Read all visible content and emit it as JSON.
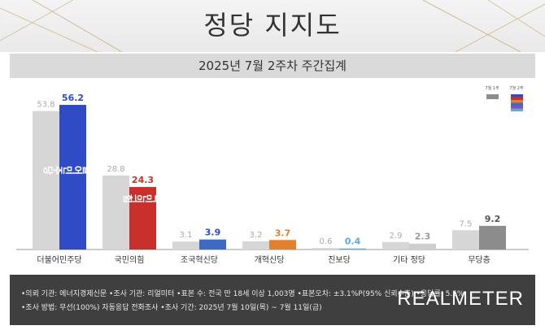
{
  "header": {
    "title": "정당 지지도",
    "subtitle": "2025년 7월 2주차 주간집계"
  },
  "legend": {
    "prev_label": "7월 1주",
    "curr_label": "7월 2주",
    "curr_stripe_colors": [
      "#2f4bc6",
      "#c9302c",
      "#e2802b",
      "#3e6ac4",
      "#8a4fb0",
      "#5fa8dc"
    ]
  },
  "chart_data": {
    "type": "bar",
    "categories": [
      "더불어민주당",
      "국민의힘",
      "조국혁신당",
      "개혁신당",
      "진보당",
      "기타 정당",
      "무당층"
    ],
    "series": [
      {
        "name": "7월 1주",
        "values": [
          53.8,
          28.8,
          3.1,
          3.2,
          0.6,
          2.9,
          7.5
        ]
      },
      {
        "name": "7월 2주",
        "values": [
          56.2,
          24.3,
          3.9,
          3.7,
          0.4,
          2.3,
          9.2
        ]
      }
    ],
    "colors": {
      "prev": "#d6d6d6",
      "curr": [
        "#2f4bc6",
        "#c9302c",
        "#3e6ac4",
        "#e2802b",
        "#5fa8dc",
        "#cfcfcf",
        "#8c8c8c"
      ],
      "curr_label": [
        "#2f4bc6",
        "#c9302c",
        "#2f4bc6",
        "#e2802b",
        "#5fa8dc",
        "#9a9a9a",
        "#555555"
      ]
    },
    "ylim": [
      0,
      60
    ],
    "bar_logos": [
      "더불어민주당",
      "국민의힘"
    ]
  },
  "footer": {
    "line1": "•의뢰 기관: 에너지경제신문 •조사 기관: 리얼미터 •표본 수: 전국 만 18세 이상 1,003명 •표본오차: ±3.1%P(95% 신뢰수준) •응답률: 5.5%",
    "line2": "•조사 방법: 무선(100%) 자동응답 전화조사 •조사 기간: 2025년 7월 10일(목) ~ 7월 11일(금)",
    "brand": "REALMETER"
  }
}
